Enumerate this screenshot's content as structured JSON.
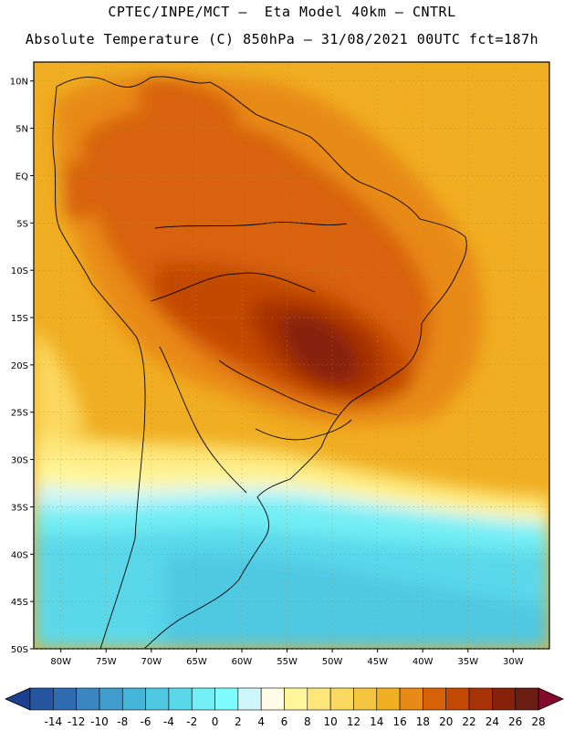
{
  "header": {
    "line1": "CPTEC/INPE/MCT –  Eta Model 40km – CNTRL",
    "line2": "Absolute Temperature (C) 850hPa – 31/08/2021 00UTC fct=187h"
  },
  "map": {
    "lat_labels": [
      "10N",
      "5N",
      "EQ",
      "5S",
      "10S",
      "15S",
      "20S",
      "25S",
      "30S",
      "35S",
      "40S",
      "45S",
      "50S"
    ],
    "lon_labels": [
      "80W",
      "75W",
      "70W",
      "65W",
      "60W",
      "55W",
      "50W",
      "45W",
      "40W",
      "35W",
      "30W"
    ],
    "lat_values": [
      10,
      5,
      0,
      -5,
      -10,
      -15,
      -20,
      -25,
      -30,
      -35,
      -40,
      -45,
      -50
    ],
    "lon_values": [
      -80,
      -75,
      -70,
      -65,
      -60,
      -55,
      -50,
      -45,
      -40,
      -35,
      -30
    ],
    "extent": {
      "lon_min": -83,
      "lon_max": -26,
      "lat_min": -50,
      "lat_max": 12
    }
  },
  "colorbar": {
    "labels": [
      "-14",
      "-12",
      "-10",
      "-8",
      "-6",
      "-4",
      "-2",
      "0",
      "2",
      "4",
      "6",
      "8",
      "10",
      "12",
      "14",
      "16",
      "18",
      "20",
      "22",
      "24",
      "26",
      "28"
    ],
    "colors": [
      "#1c3f8f",
      "#2656a0",
      "#2e6bb0",
      "#3a86c0",
      "#3f9ccc",
      "#45b5d8",
      "#4fc8e2",
      "#5ad8ea",
      "#72eef4",
      "#7ffcff",
      "#cff6fb",
      "#fffbe6",
      "#fff59a",
      "#fde77a",
      "#fbd85f",
      "#f4c540",
      "#f0ae22",
      "#e88a16",
      "#d8620a",
      "#c24a04",
      "#a83305",
      "#862209",
      "#6b1d12",
      "#830a2a"
    ]
  }
}
